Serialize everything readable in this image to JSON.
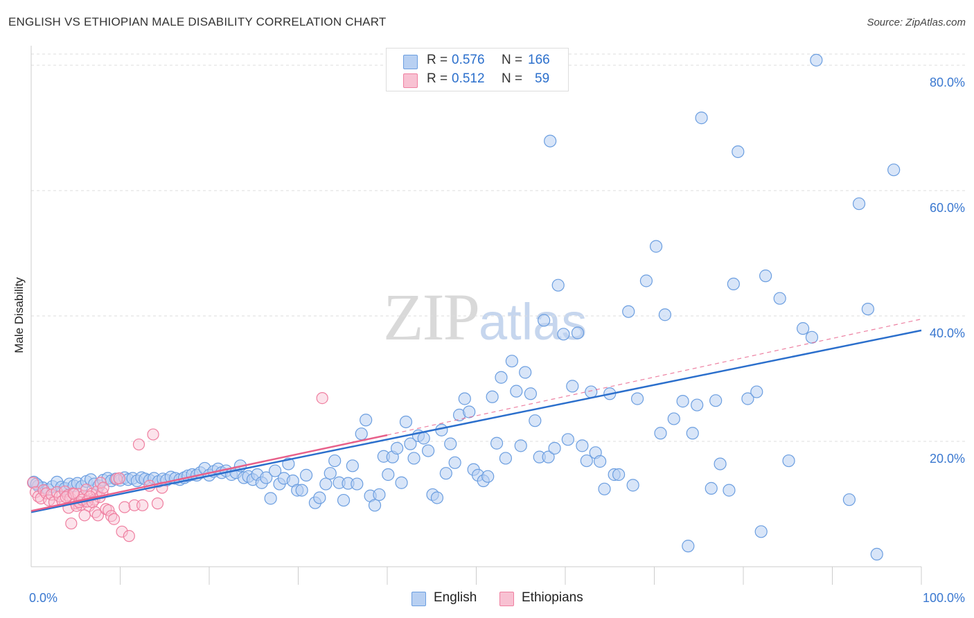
{
  "title": "ENGLISH VS ETHIOPIAN MALE DISABILITY CORRELATION CHART",
  "source": "Source: ZipAtlas.com",
  "watermark": {
    "part1": "ZIP",
    "part2": "atlas"
  },
  "colors": {
    "english": "#6b9ee0",
    "english_fill": "#b8d0f2",
    "english_line": "#2b6fcc",
    "ethiopians": "#ef7fa0",
    "ethiopians_fill": "#f8c1d2",
    "ethiopians_line": "#e8608a",
    "axis_text": "#3a78d0",
    "grid": "#dddddd"
  },
  "stats": [
    {
      "series": "English",
      "r_label": "R =",
      "r_value": "0.576",
      "n_label": "N =",
      "n_value": "166"
    },
    {
      "series": "Ethiopians",
      "r_label": "R =",
      "r_value": "0.512",
      "n_label": "N =",
      "n_value": "59"
    }
  ],
  "chart_data": {
    "type": "scatter",
    "title": "ENGLISH VS ETHIOPIAN MALE DISABILITY CORRELATION CHART",
    "xlabel": "",
    "ylabel": "Male Disability",
    "xlim": [
      0,
      100
    ],
    "ylim": [
      0,
      82
    ],
    "x_tick_labels": [
      "0.0%",
      "100.0%"
    ],
    "y_ticks": [
      20,
      40,
      60,
      80
    ],
    "y_tick_labels": [
      "20.0%",
      "40.0%",
      "60.0%",
      "80.0%"
    ],
    "legend": [
      "English",
      "Ethiopians"
    ],
    "series": [
      {
        "name": "English",
        "trend": {
          "x": [
            0,
            100
          ],
          "y": [
            8.7,
            37.7
          ],
          "style": "solid"
        },
        "points": [
          [
            0.3,
            13.5
          ],
          [
            0.8,
            12.9
          ],
          [
            1.3,
            12.6
          ],
          [
            1.9,
            12.3
          ],
          [
            2.4,
            12.8
          ],
          [
            2.9,
            13.5
          ],
          [
            3.4,
            12.7
          ],
          [
            3.8,
            12.5
          ],
          [
            4.3,
            13.2
          ],
          [
            4.8,
            12.9
          ],
          [
            5.2,
            13.3
          ],
          [
            5.7,
            12.8
          ],
          [
            6.2,
            13.6
          ],
          [
            6.7,
            13.9
          ],
          [
            7.1,
            13.2
          ],
          [
            7.6,
            12.9
          ],
          [
            8.1,
            13.8
          ],
          [
            8.6,
            14.1
          ],
          [
            9.0,
            13.7
          ],
          [
            9.5,
            14.0
          ],
          [
            10.0,
            13.8
          ],
          [
            10.5,
            14.2
          ],
          [
            10.9,
            13.9
          ],
          [
            11.4,
            14.1
          ],
          [
            11.9,
            13.7
          ],
          [
            12.4,
            14.2
          ],
          [
            12.8,
            14.0
          ],
          [
            13.3,
            13.8
          ],
          [
            13.8,
            14.1
          ],
          [
            14.3,
            13.6
          ],
          [
            14.8,
            14.0
          ],
          [
            15.2,
            13.8
          ],
          [
            15.7,
            14.3
          ],
          [
            16.2,
            14.1
          ],
          [
            16.7,
            13.9
          ],
          [
            17.2,
            14.2
          ],
          [
            17.6,
            14.5
          ],
          [
            18.1,
            14.7
          ],
          [
            18.6,
            14.6
          ],
          [
            19.0,
            15.0
          ],
          [
            19.5,
            15.7
          ],
          [
            20.0,
            14.6
          ],
          [
            20.5,
            15.2
          ],
          [
            21.0,
            15.6
          ],
          [
            21.4,
            15.0
          ],
          [
            21.9,
            15.3
          ],
          [
            22.5,
            14.7
          ],
          [
            23.0,
            15.0
          ],
          [
            23.5,
            16.1
          ],
          [
            23.9,
            14.2
          ],
          [
            24.4,
            14.4
          ],
          [
            24.9,
            13.9
          ],
          [
            25.4,
            14.7
          ],
          [
            25.9,
            13.4
          ],
          [
            26.4,
            14.2
          ],
          [
            26.9,
            10.9
          ],
          [
            27.4,
            15.3
          ],
          [
            27.9,
            13.2
          ],
          [
            28.4,
            14.1
          ],
          [
            28.9,
            16.4
          ],
          [
            29.4,
            13.7
          ],
          [
            29.9,
            12.2
          ],
          [
            30.4,
            12.2
          ],
          [
            30.9,
            14.6
          ],
          [
            31.9,
            10.2
          ],
          [
            32.4,
            11.0
          ],
          [
            33.1,
            13.2
          ],
          [
            33.6,
            14.9
          ],
          [
            34.1,
            16.9
          ],
          [
            34.6,
            13.4
          ],
          [
            35.1,
            10.6
          ],
          [
            35.6,
            13.3
          ],
          [
            36.1,
            16.1
          ],
          [
            36.6,
            13.2
          ],
          [
            37.1,
            21.2
          ],
          [
            37.6,
            23.4
          ],
          [
            38.1,
            11.3
          ],
          [
            38.6,
            9.8
          ],
          [
            39.1,
            11.5
          ],
          [
            39.6,
            17.6
          ],
          [
            40.1,
            14.7
          ],
          [
            40.6,
            17.5
          ],
          [
            41.1,
            18.9
          ],
          [
            41.6,
            13.4
          ],
          [
            42.1,
            23.1
          ],
          [
            42.6,
            19.6
          ],
          [
            43.0,
            17.3
          ],
          [
            43.5,
            20.9
          ],
          [
            44.1,
            20.5
          ],
          [
            44.6,
            18.5
          ],
          [
            45.1,
            11.5
          ],
          [
            45.6,
            11.0
          ],
          [
            46.1,
            21.8
          ],
          [
            46.6,
            14.9
          ],
          [
            47.1,
            19.6
          ],
          [
            47.6,
            16.6
          ],
          [
            48.1,
            24.2
          ],
          [
            48.7,
            26.8
          ],
          [
            49.2,
            24.7
          ],
          [
            49.7,
            15.5
          ],
          [
            50.2,
            14.6
          ],
          [
            50.8,
            13.7
          ],
          [
            51.3,
            14.4
          ],
          [
            51.8,
            27.1
          ],
          [
            52.3,
            19.7
          ],
          [
            52.8,
            30.2
          ],
          [
            53.3,
            17.3
          ],
          [
            54.0,
            32.8
          ],
          [
            54.5,
            28.0
          ],
          [
            55.0,
            19.3
          ],
          [
            55.5,
            31.0
          ],
          [
            56.1,
            27.6
          ],
          [
            56.6,
            23.3
          ],
          [
            57.1,
            17.5
          ],
          [
            57.6,
            39.3
          ],
          [
            58.1,
            17.5
          ],
          [
            58.3,
            67.9
          ],
          [
            58.8,
            18.9
          ],
          [
            59.2,
            44.9
          ],
          [
            59.8,
            37.1
          ],
          [
            60.3,
            20.3
          ],
          [
            60.8,
            28.8
          ],
          [
            61.4,
            37.3
          ],
          [
            61.9,
            19.3
          ],
          [
            62.4,
            16.9
          ],
          [
            62.9,
            27.9
          ],
          [
            63.4,
            18.2
          ],
          [
            63.9,
            16.8
          ],
          [
            64.4,
            12.4
          ],
          [
            65.0,
            27.6
          ],
          [
            65.5,
            14.7
          ],
          [
            66.0,
            14.7
          ],
          [
            67.1,
            40.7
          ],
          [
            67.6,
            13.0
          ],
          [
            68.1,
            26.8
          ],
          [
            69.1,
            45.6
          ],
          [
            70.2,
            51.1
          ],
          [
            70.7,
            21.3
          ],
          [
            71.2,
            40.2
          ],
          [
            72.2,
            23.6
          ],
          [
            73.2,
            26.4
          ],
          [
            73.8,
            3.3
          ],
          [
            74.3,
            21.3
          ],
          [
            74.8,
            25.8
          ],
          [
            75.3,
            71.6
          ],
          [
            76.9,
            26.5
          ],
          [
            76.4,
            12.5
          ],
          [
            77.4,
            16.4
          ],
          [
            78.4,
            12.2
          ],
          [
            78.9,
            45.1
          ],
          [
            79.4,
            66.2
          ],
          [
            80.5,
            26.8
          ],
          [
            81.5,
            27.9
          ],
          [
            82.0,
            5.6
          ],
          [
            82.5,
            46.4
          ],
          [
            84.1,
            42.8
          ],
          [
            85.1,
            16.9
          ],
          [
            86.7,
            38.0
          ],
          [
            87.7,
            36.6
          ],
          [
            88.2,
            80.8
          ],
          [
            91.9,
            10.7
          ],
          [
            93.0,
            57.9
          ],
          [
            94.0,
            41.1
          ],
          [
            95.0,
            2.0
          ],
          [
            96.9,
            63.3
          ],
          [
            0.6,
            13.2
          ]
        ]
      },
      {
        "name": "Ethiopians",
        "trend": {
          "x": [
            0,
            40
          ],
          "y": [
            8.9,
            21.0
          ],
          "style": "solid",
          "extended": {
            "x": [
              40,
              100
            ],
            "y": [
              21.0,
              39.5
            ],
            "style": "dashed"
          }
        },
        "points": [
          [
            0.2,
            13.4
          ],
          [
            0.5,
            11.9
          ],
          [
            0.8,
            11.2
          ],
          [
            1.1,
            10.9
          ],
          [
            1.4,
            12.2
          ],
          [
            1.7,
            11.7
          ],
          [
            2.0,
            10.6
          ],
          [
            2.3,
            11.5
          ],
          [
            2.6,
            10.3
          ],
          [
            2.9,
            11.9
          ],
          [
            3.2,
            11.2
          ],
          [
            3.5,
            10.5
          ],
          [
            3.8,
            12.0
          ],
          [
            4.1,
            11.4
          ],
          [
            4.4,
            10.9
          ],
          [
            4.7,
            11.7
          ],
          [
            5.0,
            10.1
          ],
          [
            5.3,
            11.6
          ],
          [
            5.6,
            9.9
          ],
          [
            5.9,
            11.3
          ],
          [
            6.2,
            12.3
          ],
          [
            6.5,
            9.7
          ],
          [
            6.8,
            11.6
          ],
          [
            7.1,
            10.7
          ],
          [
            7.4,
            12.0
          ],
          [
            7.7,
            11.1
          ],
          [
            8.0,
            11.8
          ],
          [
            3.9,
            11.1
          ],
          [
            4.2,
            9.4
          ],
          [
            4.5,
            6.9
          ],
          [
            4.8,
            11.6
          ],
          [
            5.1,
            9.7
          ],
          [
            5.4,
            10.3
          ],
          [
            5.7,
            10.7
          ],
          [
            6.0,
            8.2
          ],
          [
            6.3,
            10.4
          ],
          [
            6.6,
            11.2
          ],
          [
            6.9,
            10.3
          ],
          [
            7.2,
            8.7
          ],
          [
            7.5,
            8.2
          ],
          [
            7.8,
            13.4
          ],
          [
            8.1,
            12.6
          ],
          [
            8.4,
            9.2
          ],
          [
            8.7,
            9.0
          ],
          [
            9.0,
            8.1
          ],
          [
            9.3,
            7.6
          ],
          [
            9.6,
            14.0
          ],
          [
            9.9,
            14.1
          ],
          [
            10.2,
            5.6
          ],
          [
            10.5,
            9.5
          ],
          [
            11.0,
            4.9
          ],
          [
            11.6,
            9.8
          ],
          [
            12.1,
            19.5
          ],
          [
            12.5,
            9.8
          ],
          [
            13.3,
            12.9
          ],
          [
            13.7,
            21.1
          ],
          [
            14.2,
            10.1
          ],
          [
            14.7,
            12.6
          ],
          [
            32.7,
            26.9
          ]
        ]
      }
    ]
  }
}
